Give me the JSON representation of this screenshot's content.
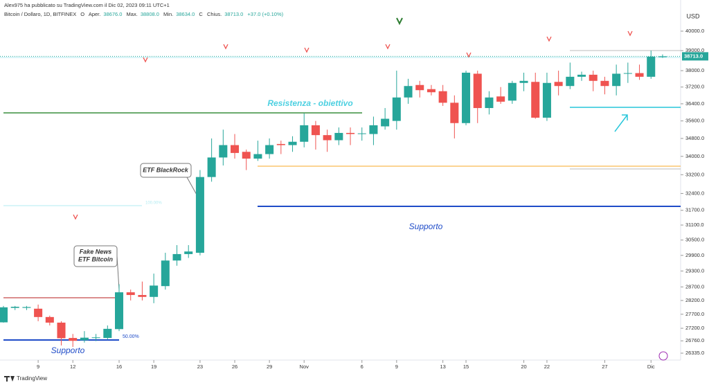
{
  "chart_data": {
    "type": "candlestick",
    "publisher": "Alex975 ha pubblicato su TradingView.com il Dic 02, 2023 09:11 UTC+1",
    "symbol": "Bitcoin / Dollaro, 1D, BITFINEX",
    "ohlc_text": [
      "O",
      "Aper.",
      "38676.0",
      "Max.",
      "38808.0",
      "Min.",
      "38634.0",
      "C",
      "Chius.",
      "38713.0",
      "+37.0 (+0.10%)"
    ],
    "currency": "USD",
    "brand": "TradingView",
    "annotations": [
      "Resistenza - obiettivo",
      "Supporto",
      "Supporto",
      "ETF BlackRock",
      "Fake News",
      "ETF Bitcoin",
      "100.00%",
      "50.00%"
    ],
    "log_scale": true,
    "up_color": "#26a69a",
    "down_color": "#ef5350",
    "open": [
      27410,
      27930,
      27930,
      27900,
      27600,
      27400,
      26860,
      26780,
      26860,
      26860,
      27170,
      28500,
      28400,
      28330,
      28730,
      29700,
      29950,
      30000,
      33100,
      33950,
      34500,
      34200,
      33900,
      34100,
      34550,
      34500,
      34650,
      35400,
      34950,
      34720,
      35050,
      35000,
      35000,
      35350,
      35600,
      36700,
      37300,
      37100,
      37000,
      36450,
      35500,
      37850,
      36200,
      36750,
      36550,
      37400,
      37450,
      35750,
      37450,
      37250,
      37700,
      37800,
      37500,
      37250,
      37850,
      37880,
      37700,
      38676
    ],
    "high": [
      28000,
      28000,
      28000,
      28050,
      27650,
      27450,
      27000,
      27100,
      27000,
      27300,
      28800,
      28600,
      28900,
      29200,
      30000,
      30300,
      30300,
      33400,
      34800,
      35200,
      35000,
      34300,
      34700,
      34800,
      34700,
      34900,
      35950,
      35600,
      35200,
      35300,
      35300,
      35300,
      35800,
      36200,
      38000,
      37600,
      37500,
      37300,
      37300,
      36800,
      38000,
      38000,
      37000,
      37200,
      37500,
      37900,
      37900,
      37900,
      38000,
      38400,
      37950,
      38000,
      37700,
      38300,
      38400,
      38300,
      39000,
      38808
    ],
    "low": [
      27400,
      27850,
      27850,
      27450,
      27300,
      26600,
      26550,
      26700,
      26750,
      26800,
      27100,
      28200,
      28200,
      28100,
      28600,
      29500,
      29800,
      29900,
      32900,
      33600,
      33900,
      33400,
      33800,
      33900,
      34100,
      34200,
      34400,
      34300,
      34200,
      34500,
      34500,
      34700,
      34500,
      35200,
      35200,
      36400,
      36700,
      36800,
      36300,
      34800,
      35400,
      35500,
      35900,
      36400,
      36400,
      37000,
      35700,
      35600,
      36800,
      37100,
      37500,
      37000,
      36850,
      36800,
      37400,
      37550,
      37600,
      38634
    ],
    "close": [
      27950,
      27970,
      27960,
      27600,
      27400,
      26850,
      26760,
      26870,
      26880,
      27180,
      28500,
      28400,
      28330,
      28750,
      29700,
      29950,
      30050,
      33100,
      33950,
      34500,
      34150,
      33900,
      34100,
      34500,
      34500,
      34650,
      35400,
      34950,
      34720,
      35050,
      35000,
      35030,
      35400,
      35700,
      36700,
      37250,
      37050,
      36950,
      36450,
      35500,
      37900,
      36200,
      36700,
      36500,
      37400,
      37500,
      35750,
      37400,
      37250,
      37700,
      37800,
      37500,
      37250,
      37850,
      37880,
      37700,
      38700,
      38713
    ],
    "xlim": [
      -0.3,
      58.56
    ],
    "xticks": [
      {
        "value": 3,
        "label": "9"
      },
      {
        "value": 6,
        "label": "12"
      },
      {
        "value": 10,
        "label": "16"
      },
      {
        "value": 13,
        "label": "19"
      },
      {
        "value": 17,
        "label": "23"
      },
      {
        "value": 20,
        "label": "26"
      },
      {
        "value": 23,
        "label": "29"
      },
      {
        "value": 26,
        "label": "Nov"
      },
      {
        "value": 31,
        "label": "6"
      },
      {
        "value": 34,
        "label": "9"
      },
      {
        "value": 38,
        "label": "13"
      },
      {
        "value": 40,
        "label": "15"
      },
      {
        "value": 45,
        "label": "20"
      },
      {
        "value": 47,
        "label": "22"
      },
      {
        "value": 52,
        "label": "27"
      },
      {
        "value": 56,
        "label": "Dic"
      }
    ],
    "ylim": [
      26100,
      41650
    ],
    "yticks": [
      {
        "value": 40000,
        "label": "40000.0"
      },
      {
        "value": 39000,
        "label": "39000.0"
      },
      {
        "value": 38000,
        "label": "38000.0"
      },
      {
        "value": 37200,
        "label": "37200.0"
      },
      {
        "value": 36400,
        "label": "36400.0"
      },
      {
        "value": 35600,
        "label": "35600.0"
      },
      {
        "value": 34800,
        "label": "34800.0"
      },
      {
        "value": 34000,
        "label": "34000.0"
      },
      {
        "value": 33200,
        "label": "33200.0"
      },
      {
        "value": 32400,
        "label": "32400.0"
      },
      {
        "value": 31700,
        "label": "31700.0"
      },
      {
        "value": 31100,
        "label": "31100.0"
      },
      {
        "value": 30500,
        "label": "30500.0"
      },
      {
        "value": 29900,
        "label": "29900.0"
      },
      {
        "value": 29300,
        "label": "29300.0"
      },
      {
        "value": 28700,
        "label": "28700.0"
      },
      {
        "value": 28200,
        "label": "28200.0"
      },
      {
        "value": 27700,
        "label": "27700.0"
      },
      {
        "value": 27200,
        "label": "27200.0"
      },
      {
        "value": 26760,
        "label": "26760.0"
      },
      {
        "value": 26335,
        "label": "26335.0"
      }
    ],
    "price_tag": {
      "value": 38713,
      "label": "38713.0"
    }
  }
}
